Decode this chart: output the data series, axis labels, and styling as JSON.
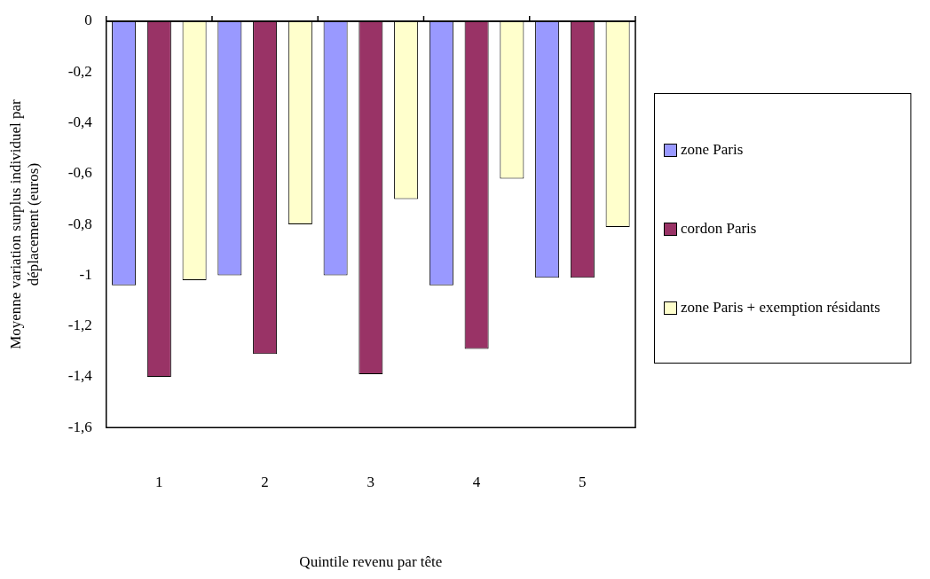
{
  "chart_data": {
    "type": "bar",
    "xlabel": "Quintile revenu par tête",
    "ylabel": "Moyenne variation surplus individuel par déplacement (euros)",
    "categories": [
      "1",
      "2",
      "3",
      "4",
      "5"
    ],
    "series": [
      {
        "name": "zone Paris",
        "color": "#9999ff",
        "values": [
          -1.04,
          -1.0,
          -1.0,
          -1.04,
          -1.01
        ]
      },
      {
        "name": "cordon Paris",
        "color": "#993366",
        "values": [
          -1.4,
          -1.31,
          -1.39,
          -1.29,
          -1.01
        ]
      },
      {
        "name": "zone Paris + exemption résidants",
        "color": "#ffffcc",
        "values": [
          -1.02,
          -0.8,
          -0.7,
          -0.62,
          -0.81
        ]
      }
    ],
    "ylim": [
      -1.6,
      0
    ],
    "yticks": [
      {
        "value": 0,
        "label": "0"
      },
      {
        "value": -0.2,
        "label": "-0,2"
      },
      {
        "value": -0.4,
        "label": "-0,4"
      },
      {
        "value": -0.6,
        "label": "-0,6"
      },
      {
        "value": -0.8,
        "label": "-0,8"
      },
      {
        "value": -1,
        "label": "-1"
      },
      {
        "value": -1.2,
        "label": "-1,2"
      },
      {
        "value": -1.4,
        "label": "-1,4"
      },
      {
        "value": -1.6,
        "label": "-1,6"
      }
    ],
    "grid": false,
    "legend": "right"
  }
}
